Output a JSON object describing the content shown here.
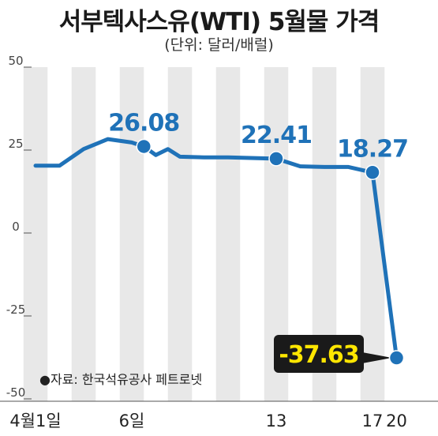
{
  "title": "서부텍사스유(WTI) 5월물 가격",
  "subtitle": "(단위: 달러/배럴)",
  "source": "●자료: 한국석유공사 페트로넷",
  "colors": {
    "line": "#1f72b8",
    "stripe": "#e8e8e8",
    "highlight_bg": "#1a1a1a",
    "highlight_text": "#ffe600"
  },
  "chart_data": {
    "type": "line",
    "title": "서부텍사스유(WTI) 5월물 가격",
    "subtitle": "(단위: 달러/배럴)",
    "ylim": [
      -50,
      50
    ],
    "yticks": [
      "50",
      "25",
      "0",
      "-25",
      "-50"
    ],
    "ytick_values": [
      50,
      25,
      0,
      -25,
      -50
    ],
    "x_tick_labels": [
      {
        "index": 0,
        "label": "4월1일"
      },
      {
        "index": 4,
        "label": "6일"
      },
      {
        "index": 10,
        "label": "13"
      },
      {
        "index": 14,
        "label": "17"
      },
      {
        "index": 15,
        "label": "20"
      }
    ],
    "series": [
      {
        "values": [
          20.3,
          20.3,
          25.3,
          28.3,
          27.3,
          26.08,
          23.5,
          25.3,
          23.0,
          22.8,
          22.8,
          22.41,
          20.1,
          19.9,
          19.9,
          18.27,
          -37.63
        ]
      }
    ],
    "point_indices": [
      0,
      1,
      2,
      3,
      4,
      4.5,
      5,
      5.5,
      6,
      7,
      8,
      10,
      11,
      12,
      13,
      14,
      15
    ],
    "markers": [
      {
        "index": 4.5,
        "value": 26.08,
        "label": "26.08"
      },
      {
        "index": 10,
        "value": 22.41,
        "label": "22.41"
      },
      {
        "index": 14,
        "value": 18.27,
        "label": "18.27"
      },
      {
        "index": 15,
        "value": -37.63,
        "label": "-37.63",
        "highlight": true
      }
    ],
    "legend": "none",
    "grid": false
  }
}
